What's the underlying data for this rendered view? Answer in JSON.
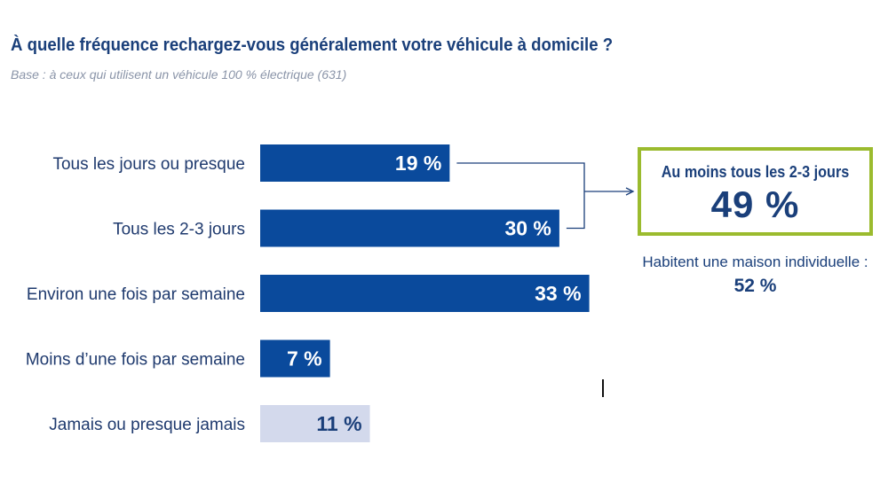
{
  "title": "À quelle fréquence rechargez-vous généralement votre véhicule à domicile ?",
  "subtitle": "Base : à ceux qui utilisent un véhicule 100 % électrique (631)",
  "chart_data": {
    "type": "bar",
    "orientation": "horizontal",
    "categories": [
      "Tous les jours ou presque",
      "Tous les 2-3 jours",
      "Environ une fois par semaine",
      "Moins d’une fois par semaine",
      "Jamais ou presque jamais"
    ],
    "values": [
      19,
      30,
      33,
      7,
      11
    ],
    "value_labels": [
      "19 %",
      "30 %",
      "33 %",
      "7 %",
      "11 %"
    ],
    "bar_colors": [
      "#0a4a9c",
      "#0a4a9c",
      "#0a4a9c",
      "#0a4a9c",
      "#d3d9ec"
    ],
    "label_colors": [
      "#ffffff",
      "#ffffff",
      "#ffffff",
      "#ffffff",
      "#1a3f7a"
    ],
    "category_label_color": "#1f3a6e",
    "grid": false,
    "legend": "none"
  },
  "summary": {
    "label": "Au moins tous les 2-3 jours",
    "value": "49 %",
    "border_color": "#9bbb2e",
    "bracket_groups": [
      0,
      1
    ]
  },
  "note": {
    "text": "Habitent une maison individuelle :",
    "value": "52 %"
  }
}
